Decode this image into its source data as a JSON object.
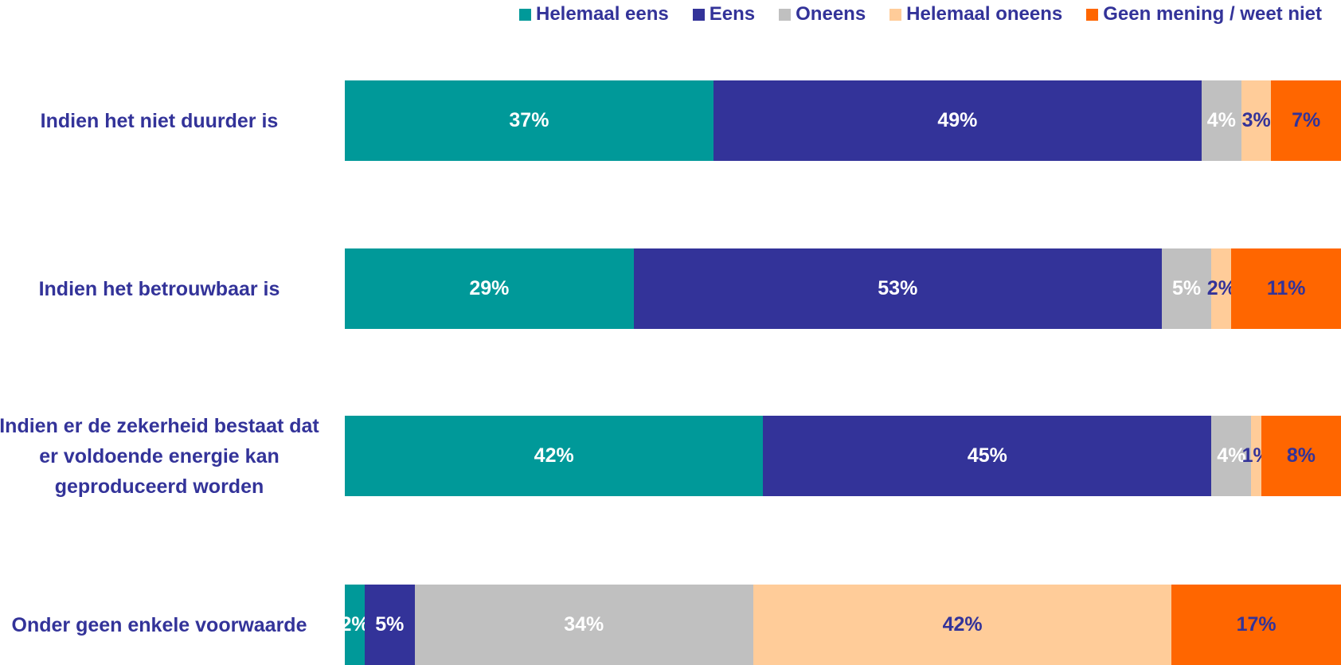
{
  "chart_data": {
    "type": "bar",
    "orientation": "horizontal",
    "stacked": true,
    "categories": [
      "Indien het niet duurder is",
      "Indien het betrouwbaar is",
      "Indien er de zekerheid bestaat dat er voldoende energie kan geproduceerd worden",
      "Onder geen enkele voorwaarde"
    ],
    "series": [
      {
        "name": "Helemaal eens",
        "color": "#009999",
        "values": [
          37,
          29,
          42,
          2
        ],
        "value_labels": [
          "37%",
          "29%",
          "42%",
          "2%"
        ]
      },
      {
        "name": "Eens",
        "color": "#333399",
        "values": [
          49,
          53,
          45,
          5
        ],
        "value_labels": [
          "49%",
          "53%",
          "45%",
          "5%"
        ]
      },
      {
        "name": "Oneens",
        "color": "#c0c0c0",
        "values": [
          4,
          5,
          4,
          34
        ],
        "value_labels": [
          "4%",
          "5%",
          "4%",
          "34%"
        ]
      },
      {
        "name": "Helemaal oneens",
        "color": "#ffcc99",
        "values": [
          3,
          2,
          1,
          42
        ],
        "value_labels": [
          "3%",
          "2%",
          "1%",
          "42%"
        ]
      },
      {
        "name": "Geen mening / weet niet",
        "color": "#ff6600",
        "values": [
          7,
          11,
          8,
          17
        ],
        "value_labels": [
          "7%",
          "11%",
          "8%",
          "17%"
        ]
      }
    ],
    "legend": "top"
  }
}
